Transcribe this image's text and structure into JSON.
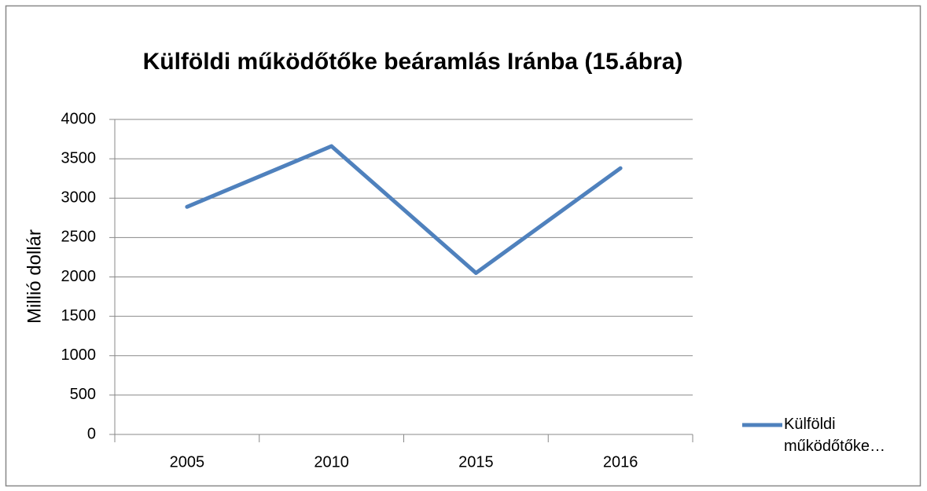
{
  "chart_data": {
    "type": "line",
    "title": "Külföldi működőtőke beáramlás Iránba (15.ábra)",
    "y_label": "Millió dollár",
    "categories": [
      "2005",
      "2010",
      "2015",
      "2016"
    ],
    "series": [
      {
        "name": "Külföldi működőtőke…",
        "color": "#4f81bd",
        "values": [
          2890,
          3660,
          2050,
          3380
        ]
      }
    ],
    "ylim": [
      0,
      4000
    ],
    "yticks": [
      0,
      500,
      1000,
      1500,
      2000,
      2500,
      3000,
      3500,
      4000
    ],
    "grid": true,
    "legend": "right"
  }
}
